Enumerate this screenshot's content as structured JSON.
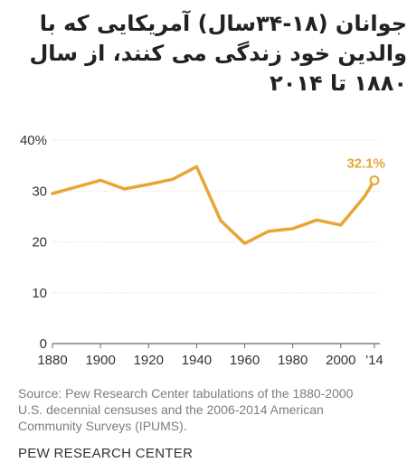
{
  "header": {
    "title_lines": [
      "جوانان (۱۸-۳۴سال) آمریکایی که با",
      "والدین خود زندگی می کنند، از سال",
      "۱۸۸۰ تا ۲۰۱۴"
    ]
  },
  "chart_data": {
    "type": "line",
    "title": "جوانان (۱۸-۳۴سال) آمریکایی که با والدین خود زندگی می کنند، از سال ۱۸۸۰ تا ۲۰۱۴",
    "x": [
      1880,
      1900,
      1910,
      1920,
      1930,
      1940,
      1950,
      1960,
      1970,
      1980,
      1990,
      2000,
      2010,
      2014
    ],
    "series": [
      {
        "values": [
          29.5,
          32.1,
          30.4,
          31.3,
          32.3,
          34.8,
          24.2,
          19.7,
          22.1,
          22.6,
          24.3,
          23.3,
          29.0,
          32.1
        ]
      }
    ],
    "x_ticks": [
      "1880",
      "1900",
      "1920",
      "1940",
      "1960",
      "1980",
      "2000",
      "'14"
    ],
    "x_tick_values": [
      1880,
      1900,
      1920,
      1940,
      1960,
      1980,
      2000,
      2014
    ],
    "y_ticks": [
      "40%",
      "30",
      "20",
      "10",
      "0"
    ],
    "y_tick_values": [
      40,
      30,
      20,
      10,
      0
    ],
    "ylim": [
      0,
      40
    ],
    "xlim": [
      1880,
      2014
    ],
    "end_label": "32.1%",
    "line_color": "#e8a534",
    "label_color": "#e8a534",
    "grid": true,
    "xlabel": "",
    "ylabel": ""
  },
  "footer": {
    "source_lines": [
      "Source: Pew Research Center tabulations of the 1880-2000",
      "U.S. decennial censuses and the 2006-2014 American",
      "Community Surveys (IPUMS)."
    ],
    "brand": "PEW RESEARCH CENTER"
  }
}
